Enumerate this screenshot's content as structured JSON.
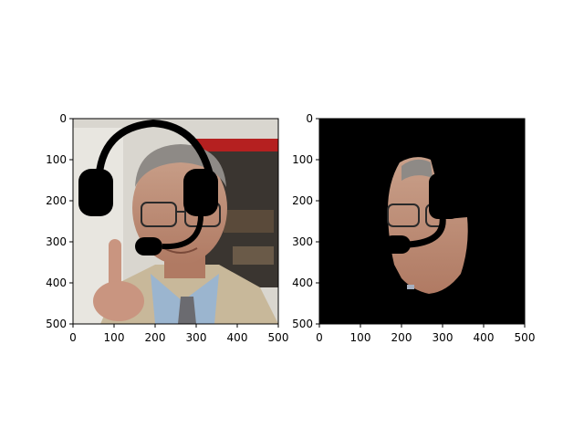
{
  "chart_data": [
    {
      "type": "image",
      "title": "",
      "xlabel": "",
      "ylabel": "",
      "xlim": [
        0,
        500
      ],
      "ylim": [
        500,
        0
      ],
      "xticks": [
        0,
        100,
        200,
        300,
        400,
        500
      ],
      "yticks": [
        0,
        100,
        200,
        300,
        400,
        500
      ],
      "content": "photo of man with glasses pointing finger, headset drawn over head",
      "overlay_color": "#000000"
    },
    {
      "type": "image",
      "title": "",
      "xlabel": "",
      "ylabel": "",
      "xlim": [
        0,
        500
      ],
      "ylim": [
        500,
        0
      ],
      "xticks": [
        0,
        100,
        200,
        300,
        400,
        500
      ],
      "yticks": [
        0,
        100,
        200,
        300,
        400,
        500
      ],
      "content": "face segmentation mask on black background",
      "background_color": "#000000"
    }
  ]
}
